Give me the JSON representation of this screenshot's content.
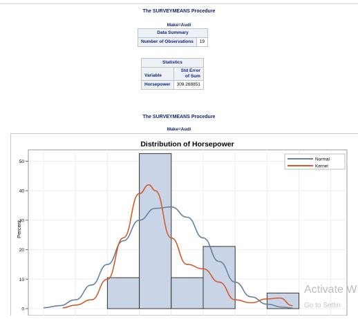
{
  "section1": {
    "title": "The SURVEYMEANS Procedure",
    "byline": "Make=Audi",
    "data_summary": {
      "header": "Data Summary",
      "row_label": "Number of Observations",
      "row_value": "19"
    },
    "statistics": {
      "header": "Statistics",
      "col_variable": "Variable",
      "col_stderr_line1": "Std Error",
      "col_stderr_line2": "of Sum",
      "row_variable": "Horsepower",
      "row_value": "309.268851"
    }
  },
  "section2": {
    "title": "The SURVEYMEANS Procedure",
    "byline": "Make=Audi"
  },
  "watermark": {
    "line1": "Activate W",
    "line2": "Go to Settin"
  },
  "colors": {
    "bar_fill": "#c9d5e6",
    "bar_stroke": "#333333",
    "normal": "#667fa2",
    "kernel": "#d05b2b",
    "header_bg": "#edf2f9",
    "title_text": "#112277"
  },
  "chart_data": {
    "type": "bar",
    "title": "Distribution of Horsepower",
    "ylabel": "Percent",
    "xlabel": "",
    "ylim": [
      0,
      55
    ],
    "yticks": [
      0,
      10,
      20,
      30,
      40,
      50
    ],
    "grid": true,
    "legend_position": "top-right",
    "bins": [
      {
        "index": 2,
        "value": 10.5
      },
      {
        "index": 3,
        "value": 52.6
      },
      {
        "index": 4,
        "value": 10.5
      },
      {
        "index": 5,
        "value": 21.1
      },
      {
        "index": 7,
        "value": 5.3
      }
    ],
    "series": [
      {
        "name": "Normal",
        "type": "line",
        "color": "#667fa2",
        "values": [
          [
            0,
            0.3
          ],
          [
            0.5,
            1
          ],
          [
            1,
            3
          ],
          [
            1.5,
            8
          ],
          [
            2,
            15
          ],
          [
            2.5,
            23
          ],
          [
            3,
            30
          ],
          [
            3.5,
            34
          ],
          [
            4,
            34.5
          ],
          [
            4.5,
            31
          ],
          [
            5,
            24
          ],
          [
            5.5,
            16
          ],
          [
            6,
            9
          ],
          [
            6.5,
            4
          ],
          [
            7,
            1.5
          ],
          [
            7.5,
            0.5
          ],
          [
            7.8,
            0.2
          ]
        ]
      },
      {
        "name": "Kernel",
        "type": "line",
        "color": "#d05b2b",
        "values": [
          [
            0.6,
            0.3
          ],
          [
            1,
            1.2
          ],
          [
            1.5,
            3
          ],
          [
            2,
            10
          ],
          [
            2.5,
            24
          ],
          [
            3,
            39
          ],
          [
            3.3,
            42
          ],
          [
            3.5,
            40
          ],
          [
            4,
            24
          ],
          [
            4.5,
            15
          ],
          [
            5,
            13.5
          ],
          [
            5.5,
            9
          ],
          [
            6,
            3
          ],
          [
            6.5,
            2
          ],
          [
            7,
            3.3
          ],
          [
            7.4,
            3.6
          ],
          [
            7.8,
            1
          ]
        ]
      }
    ],
    "legend": [
      "Normal",
      "Kernel"
    ]
  }
}
